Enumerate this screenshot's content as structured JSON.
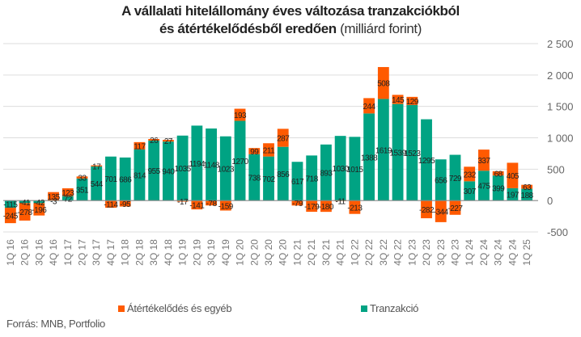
{
  "chart_data": {
    "type": "bar",
    "stacked": true,
    "title_bold": "A vállalati hitelállomány éves változása tranzakciókból",
    "title_bold_line2": "és átértékelődésből eredően",
    "title_normal": "(milliárd forint)",
    "xlabel": "",
    "ylabel": "",
    "ylim": [
      -500,
      2500
    ],
    "yticks": [
      2500,
      2000,
      1500,
      1000,
      500,
      0,
      -500
    ],
    "ytick_labels": [
      "2 500",
      "2 000",
      "1 500",
      "1 000",
      "500",
      "0",
      "-500"
    ],
    "grid": true,
    "legend_position": "bottom",
    "categories": [
      "1Q 16",
      "2Q 16",
      "3Q 16",
      "4Q 16",
      "1Q 17",
      "2Q 17",
      "3Q 17",
      "4Q 17",
      "1Q 18",
      "2Q 18",
      "3Q 18",
      "4Q 18",
      "1Q 19",
      "2Q 19",
      "3Q 19",
      "4Q 19",
      "1Q 20",
      "2Q 20",
      "3Q 20",
      "4Q 20",
      "1Q 21",
      "2Q 21",
      "3Q 21",
      "4Q 21",
      "1Q 22",
      "2Q 22",
      "3Q 22",
      "4Q 22",
      "1Q 23",
      "2Q 23",
      "3Q 23",
      "4Q 23",
      "1Q 24",
      "2Q 24",
      "3Q 24",
      "4Q 24",
      "1Q 25"
    ],
    "series": [
      {
        "name": "Átértékelődés és egyéb",
        "color": "#ff5a00",
        "values": [
          -245,
          -278,
          -196,
          135,
          123,
          33,
          17,
          -114,
          -95,
          117,
          26,
          27,
          -17,
          -141,
          -78,
          -159,
          193,
          99,
          211,
          287,
          -79,
          -179,
          -180,
          -11,
          -213,
          244,
          508,
          145,
          129,
          -282,
          -344,
          -227,
          232,
          337,
          68,
          405,
          63
        ]
      },
      {
        "name": "Tranzakció",
        "color": "#00a383",
        "values": [
          -115,
          -41,
          -42,
          -3,
          72,
          351,
          544,
          701,
          686,
          814,
          955,
          940,
          1035,
          1194,
          1148,
          1023,
          1270,
          738,
          702,
          856,
          617,
          718,
          893,
          1030,
          1015,
          1388,
          1619,
          1539,
          1523,
          1295,
          656,
          729,
          307,
          475,
          399,
          197,
          188
        ]
      }
    ]
  },
  "legend": {
    "revaluation": "Átértékelődés és egyéb",
    "transaction": "Tranzakció"
  },
  "source": "Forrás: MNB, Portfolio"
}
